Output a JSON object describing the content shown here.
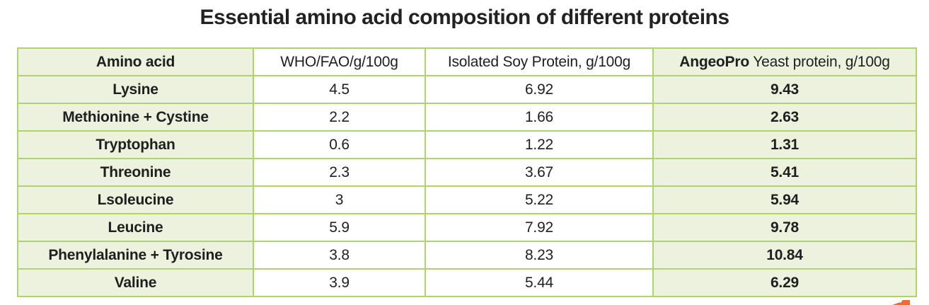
{
  "page_title": "Essential amino acid composition of different proteins",
  "colors": {
    "cell_green": "#ecf2dd",
    "border_green": "#aed46b",
    "text": "#1f1f1f",
    "accent_orange": "#ee6a35"
  },
  "chart_data": {
    "type": "table",
    "title": "Essential amino acid composition of different proteins",
    "columns": [
      "Amino acid",
      "WHO/FAO/g/100g",
      "Isolated Soy Protein, g/100g",
      "AngeoPro Yeast protein, g/100g"
    ],
    "header": {
      "amino_acid": "Amino acid",
      "who_fao": "WHO/FAO/g/100g",
      "soy": "Isolated Soy Protein, g/100g",
      "angeopro_brand": "AngeoPro",
      "angeopro_rest": " Yeast protein, g/100g"
    },
    "rows": [
      [
        "Lysine",
        "4.5",
        "6.92",
        "9.43"
      ],
      [
        "Methionine + Cystine",
        "2.2",
        "1.66",
        "2.63"
      ],
      [
        "Tryptophan",
        "0.6",
        "1.22",
        "1.31"
      ],
      [
        "Threonine",
        "2.3",
        "3.67",
        "5.41"
      ],
      [
        "Lsoleucine",
        "3",
        "5.22",
        "5.94"
      ],
      [
        "Leucine",
        "5.9",
        "7.92",
        "9.78"
      ],
      [
        "Phenylalanine + Tyrosine",
        "3.8",
        "8.23",
        "10.84"
      ],
      [
        "Valine",
        "3.9",
        "5.44",
        "6.29"
      ]
    ]
  }
}
